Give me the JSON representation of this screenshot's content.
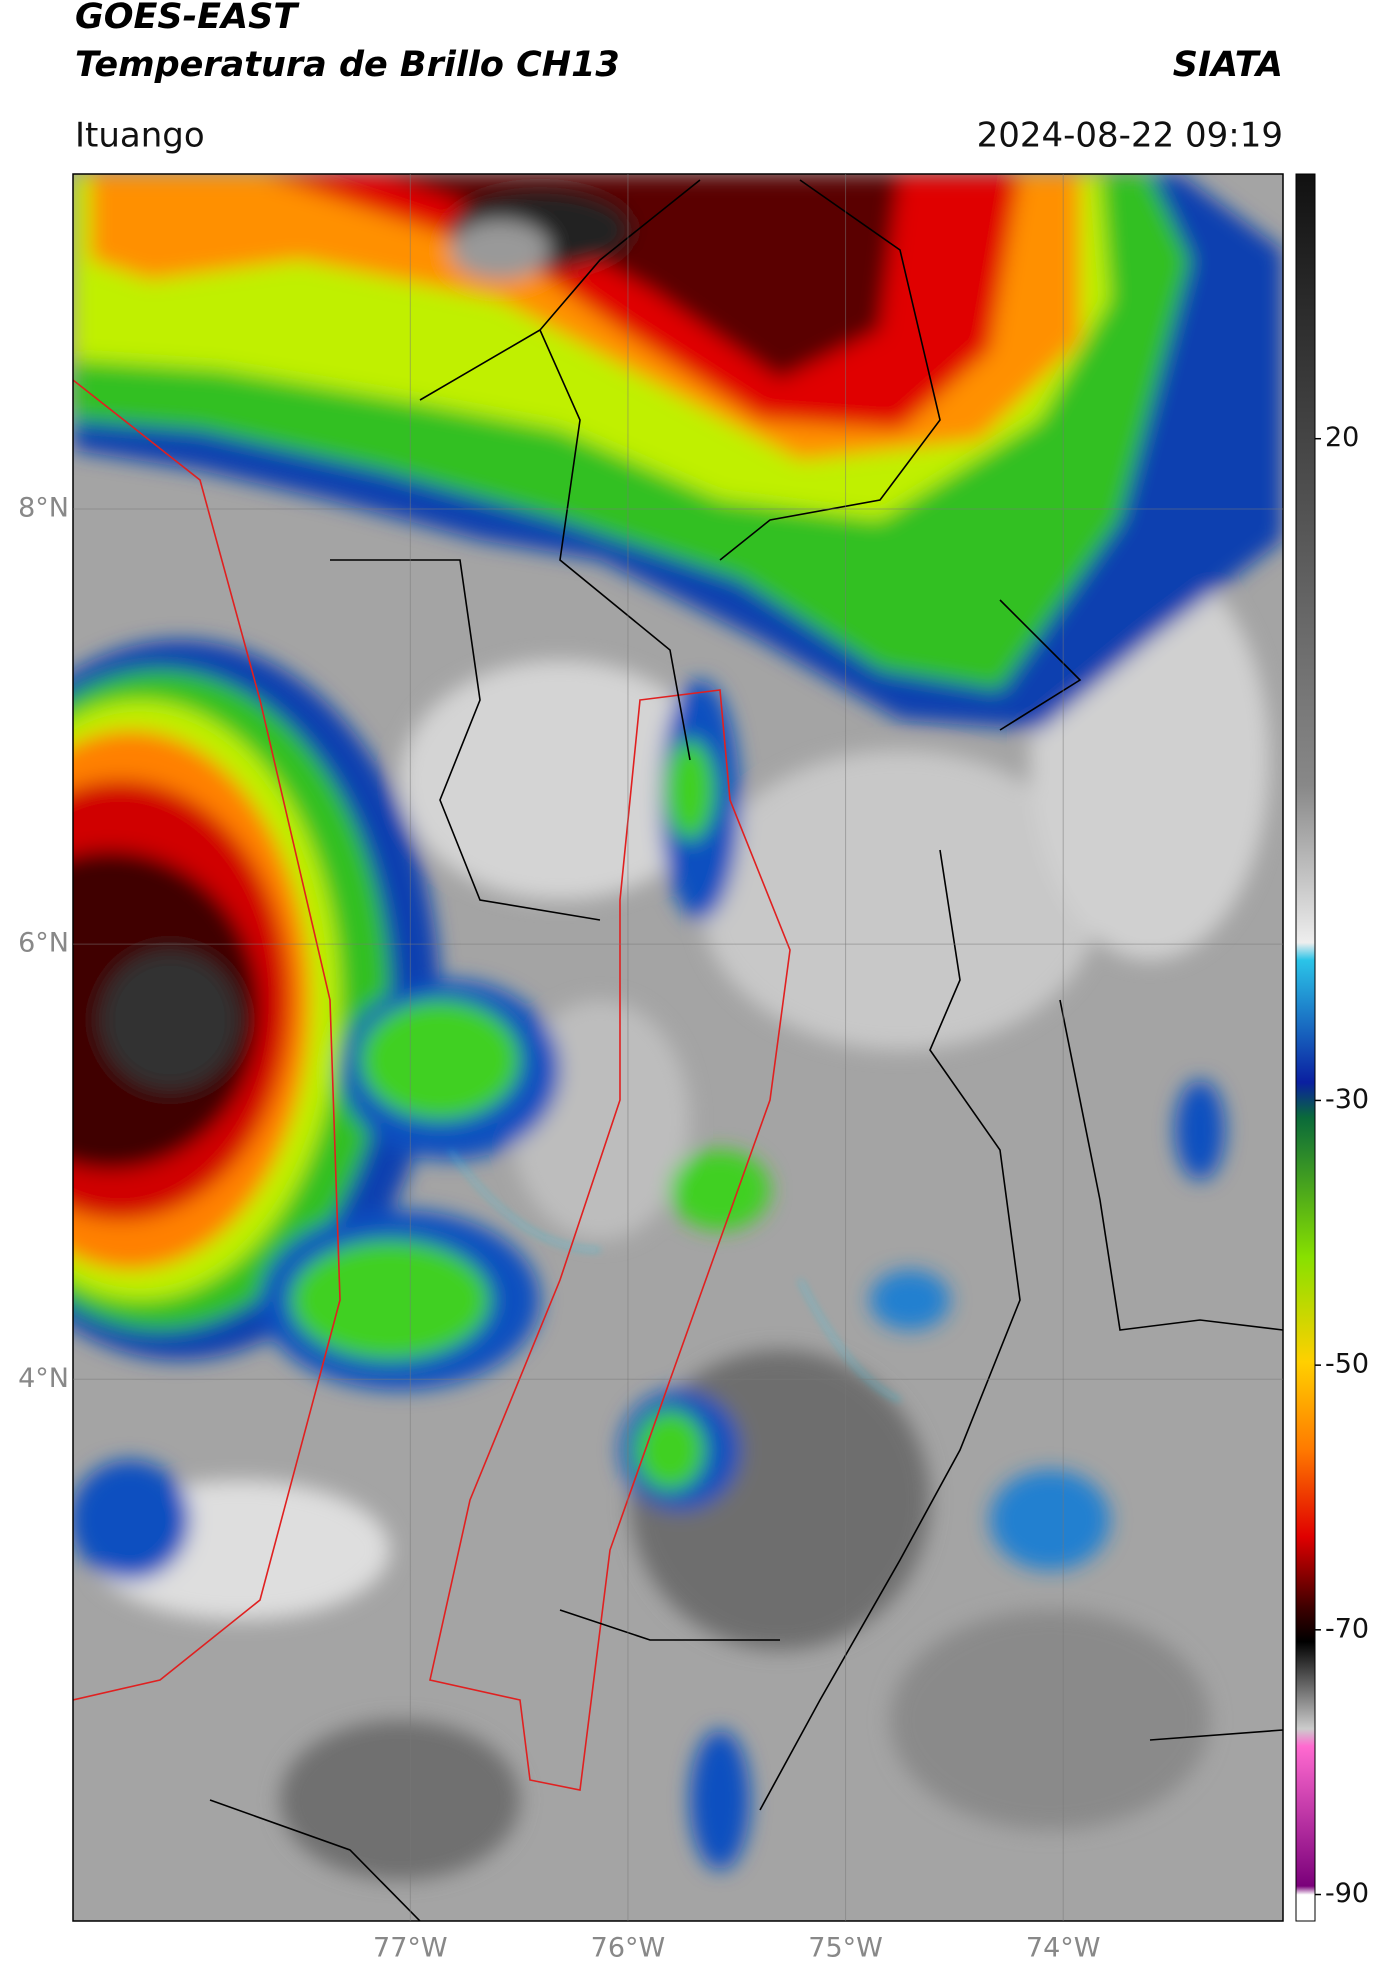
{
  "header": {
    "satellite": "GOES-EAST",
    "product": "Temperatura de Brillo CH13",
    "org": "SIATA",
    "location": "Ituango",
    "datetime": "2024-08-22 09:19"
  },
  "map": {
    "xlim": [
      -78.55,
      -72.99
    ],
    "ylim": [
      1.51,
      9.54
    ],
    "xticks": [
      {
        "value": -77,
        "label": "77°W"
      },
      {
        "value": -76,
        "label": "76°W"
      },
      {
        "value": -75,
        "label": "75°W"
      },
      {
        "value": -74,
        "label": "74°W"
      }
    ],
    "yticks": [
      {
        "value": 8,
        "label": "8°N"
      },
      {
        "value": 6,
        "label": "6°N"
      },
      {
        "value": 4,
        "label": "4°N"
      }
    ],
    "grid": true
  },
  "colorbar": {
    "range": [
      -92,
      40
    ],
    "ticks": [
      20,
      -30,
      -50,
      -70,
      -90
    ]
  }
}
